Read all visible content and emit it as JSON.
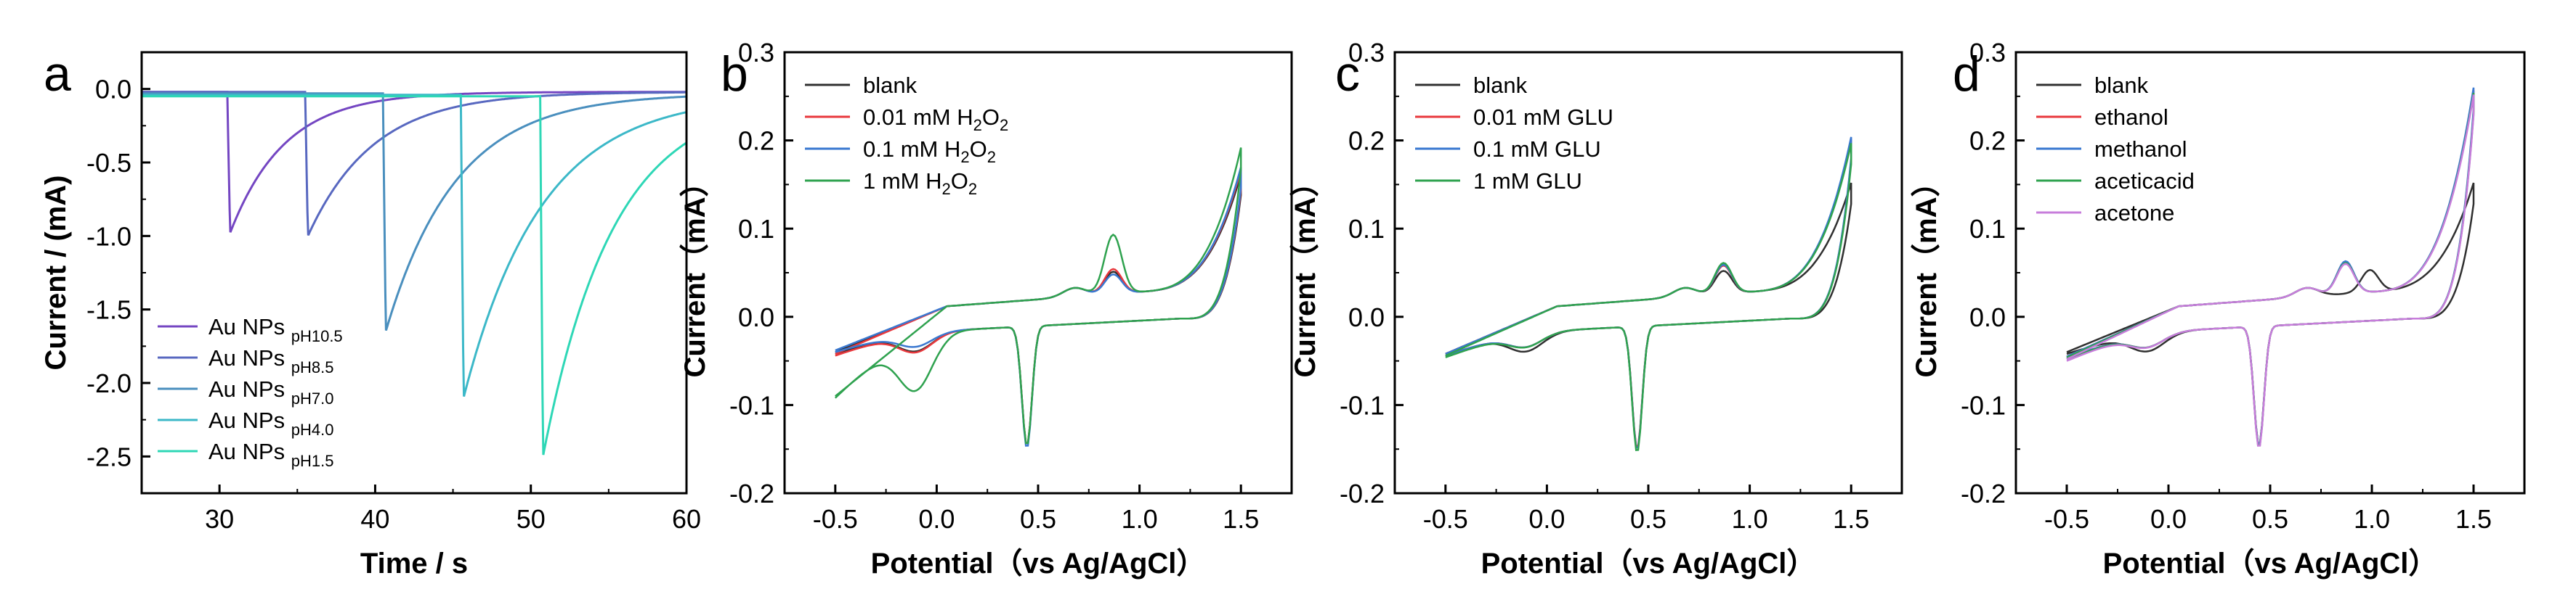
{
  "figure": {
    "panels": [
      "a",
      "b",
      "c",
      "d"
    ]
  },
  "chart_data": [
    {
      "panel": "a",
      "type": "line",
      "title": "",
      "xlabel": "Time / s",
      "ylabel": "Current / (mA)",
      "xlim": [
        25,
        60
      ],
      "ylim": [
        -2.75,
        0.25
      ],
      "xticks": [
        30,
        40,
        50,
        60
      ],
      "yticks": [
        0.0,
        -0.5,
        -1.0,
        -1.5,
        -2.0,
        -2.5
      ],
      "ytick_labels": [
        "0.0",
        "-0.5",
        "-1.0",
        "-1.5",
        "-2.0",
        "-2.5"
      ],
      "legend_position": "lower-left",
      "series": [
        {
          "name": "Au NPs",
          "sub": "pH10.5",
          "color": "#7446c2",
          "t0": 30.5,
          "peak": -0.98,
          "tau": 3.5,
          "base": -0.02
        },
        {
          "name": "Au NPs",
          "sub": "pH8.5",
          "color": "#5868c0",
          "t0": 35.5,
          "peak": -1.0,
          "tau": 4.2,
          "base": -0.02
        },
        {
          "name": "Au NPs",
          "sub": "pH7.0",
          "color": "#4a8fbe",
          "t0": 40.5,
          "peak": -1.65,
          "tau": 4.5,
          "base": -0.03
        },
        {
          "name": "Au NPs",
          "sub": "pH4.0",
          "color": "#3cb8c8",
          "t0": 45.5,
          "peak": -2.1,
          "tau": 5.0,
          "base": -0.04
        },
        {
          "name": "Au NPs",
          "sub": "pH1.5",
          "color": "#2ed7b6",
          "t0": 50.6,
          "peak": -2.5,
          "tau": 4.5,
          "base": -0.05
        }
      ]
    },
    {
      "panel": "b",
      "type": "line",
      "xlabel": "Potential（vs Ag/AgCl）",
      "ylabel": "Current（mA）",
      "xlim": [
        -0.75,
        1.75
      ],
      "ylim": [
        -0.2,
        0.3
      ],
      "xticks": [
        -0.5,
        0.0,
        0.5,
        1.0,
        1.5
      ],
      "xtick_labels": [
        "-0.5",
        "0.0",
        "0.5",
        "1.0",
        "1.5"
      ],
      "yticks": [
        -0.2,
        -0.1,
        0.0,
        0.1,
        0.2,
        0.3
      ],
      "ytick_labels": [
        "-0.2",
        "-0.1",
        "0.0",
        "0.1",
        "0.2",
        "0.3"
      ],
      "legend_position": "top-left",
      "legend": [
        {
          "label": "blank",
          "sub": "",
          "after": "",
          "color": "#303030"
        },
        {
          "label": "0.01 mM H",
          "sub": "2",
          "after": "O",
          "sub2": "2",
          "color": "#e8383d"
        },
        {
          "label": "0.1 mM H",
          "sub": "2",
          "after": "O",
          "sub2": "2",
          "color": "#3a78d0"
        },
        {
          "label": "1 mM H",
          "sub": "2",
          "after": "O",
          "sub2": "2",
          "color": "#2fa24f"
        }
      ],
      "series": [
        {
          "name": "blank",
          "color": "#303030",
          "ox_peak": 0.045,
          "red_peak": -0.145,
          "end": 0.16,
          "low": -0.04,
          "dip": -0.035
        },
        {
          "name": "0.01 mM H2O2",
          "color": "#e8383d",
          "ox_peak": 0.048,
          "red_peak": -0.145,
          "end": 0.165,
          "low": -0.042,
          "dip": -0.036
        },
        {
          "name": "0.1 mM H2O2",
          "color": "#3a78d0",
          "ox_peak": 0.042,
          "red_peak": -0.148,
          "end": 0.168,
          "low": -0.038,
          "dip": -0.03
        },
        {
          "name": "1 mM H2O2",
          "color": "#2fa24f",
          "ox_peak": 0.087,
          "red_peak": -0.145,
          "end": 0.19,
          "low": -0.09,
          "dip": -0.075
        }
      ]
    },
    {
      "panel": "c",
      "type": "line",
      "xlabel": "Potential（vs Ag/AgCl）",
      "ylabel": "Current（mA）",
      "xlim": [
        -0.75,
        1.75
      ],
      "ylim": [
        -0.2,
        0.3
      ],
      "xticks": [
        -0.5,
        0.0,
        0.5,
        1.0,
        1.5
      ],
      "xtick_labels": [
        "-0.5",
        "0.0",
        "0.5",
        "1.0",
        "1.5"
      ],
      "yticks": [
        -0.2,
        -0.1,
        0.0,
        0.1,
        0.2,
        0.3
      ],
      "ytick_labels": [
        "-0.2",
        "-0.1",
        "0.0",
        "0.1",
        "0.2",
        "0.3"
      ],
      "legend_position": "top-left",
      "legend": [
        {
          "label": "blank",
          "color": "#303030"
        },
        {
          "label": "0.01 mM GLU",
          "color": "#e8383d"
        },
        {
          "label": "0.1 mM GLU",
          "color": "#3a78d0"
        },
        {
          "label": "1 mM GLU",
          "color": "#2fa24f"
        }
      ],
      "series": [
        {
          "name": "blank",
          "color": "#303030",
          "ox_peak": 0.046,
          "red_peak": -0.15,
          "end": 0.15,
          "low": -0.042,
          "dip": -0.035
        },
        {
          "name": "0.01 mM GLU",
          "color": "#e8383d",
          "ox_peak": 0.052,
          "red_peak": -0.148,
          "end": 0.2,
          "low": -0.042,
          "dip": -0.03
        },
        {
          "name": "0.1 mM GLU",
          "color": "#3a78d0",
          "ox_peak": 0.053,
          "red_peak": -0.15,
          "end": 0.202,
          "low": -0.042,
          "dip": -0.03
        },
        {
          "name": "1 mM GLU",
          "color": "#2fa24f",
          "ox_peak": 0.055,
          "red_peak": -0.153,
          "end": 0.195,
          "low": -0.044,
          "dip": -0.03
        }
      ]
    },
    {
      "panel": "d",
      "type": "line",
      "xlabel": "Potential（vs Ag/AgCl）",
      "ylabel": "Current（mA）",
      "xlim": [
        -0.75,
        1.75
      ],
      "ylim": [
        -0.2,
        0.3
      ],
      "xticks": [
        -0.5,
        0.0,
        0.5,
        1.0,
        1.5
      ],
      "xtick_labels": [
        "-0.5",
        "0.0",
        "0.5",
        "1.0",
        "1.5"
      ],
      "yticks": [
        -0.2,
        -0.1,
        0.0,
        0.1,
        0.2,
        0.3
      ],
      "ytick_labels": [
        "-0.2",
        "-0.1",
        "0.0",
        "0.1",
        "0.2",
        "0.3"
      ],
      "legend_position": "top-left",
      "legend": [
        {
          "label": "blank",
          "color": "#303030"
        },
        {
          "label": "ethanol",
          "color": "#e8383d"
        },
        {
          "label": "methanol",
          "color": "#3a78d0"
        },
        {
          "label": "aceticacid",
          "color": "#2fa24f"
        },
        {
          "label": "acetone",
          "color": "#c77ddb"
        }
      ],
      "series": [
        {
          "name": "blank",
          "color": "#303030",
          "ox_peak": 0.045,
          "red_peak": -0.145,
          "end": 0.15,
          "low": -0.04,
          "dip": -0.035,
          "shift": 0.12
        },
        {
          "name": "ethanol",
          "color": "#e8383d",
          "ox_peak": 0.056,
          "red_peak": -0.145,
          "end": 0.255,
          "low": -0.045,
          "dip": -0.03
        },
        {
          "name": "methanol",
          "color": "#3a78d0",
          "ox_peak": 0.057,
          "red_peak": -0.145,
          "end": 0.258,
          "low": -0.045,
          "dip": -0.03
        },
        {
          "name": "aceticacid",
          "color": "#2fa24f",
          "ox_peak": 0.055,
          "red_peak": -0.147,
          "end": 0.252,
          "low": -0.046,
          "dip": -0.03
        },
        {
          "name": "acetone",
          "color": "#c77ddb",
          "ox_peak": 0.054,
          "red_peak": -0.148,
          "end": 0.25,
          "low": -0.048,
          "dip": -0.03
        }
      ]
    }
  ]
}
